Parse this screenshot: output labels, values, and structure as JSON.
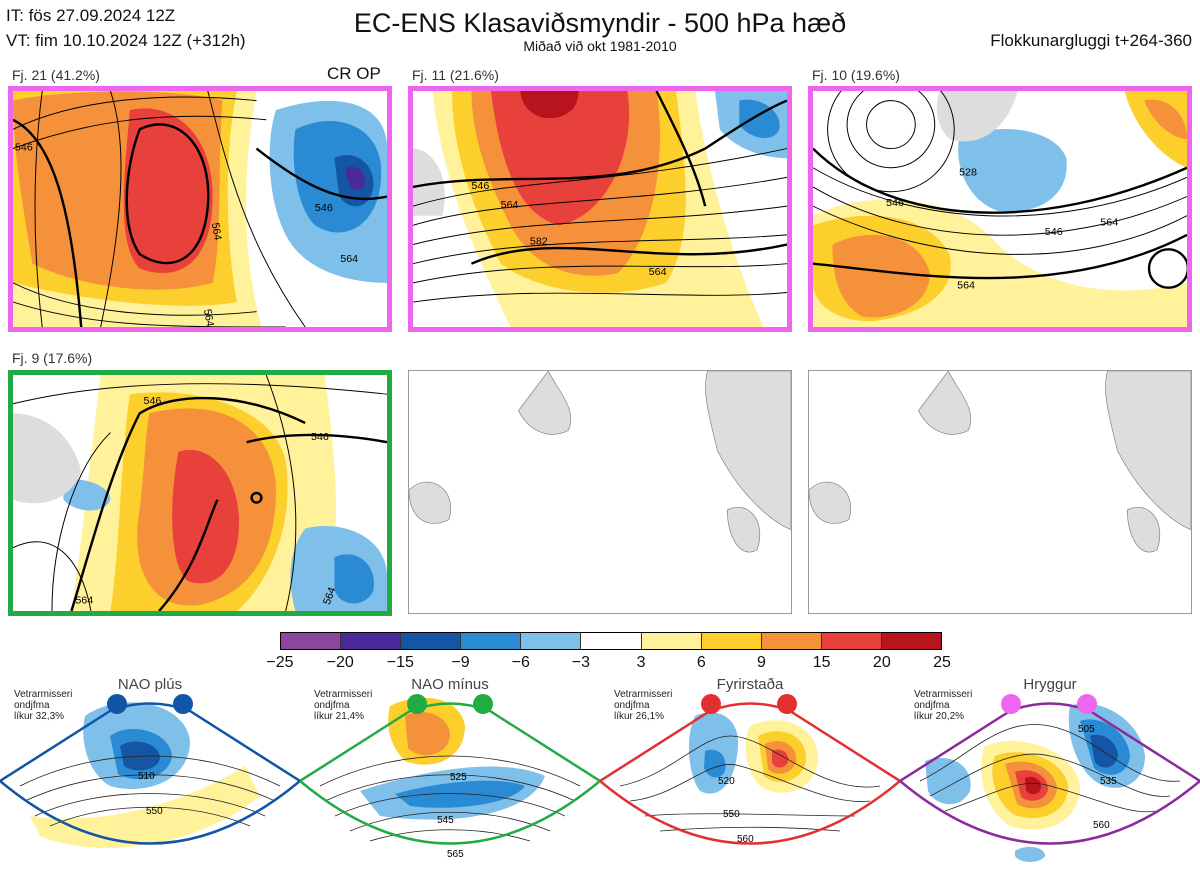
{
  "header": {
    "init_time": "IT: fös 27.09.2024 12Z",
    "valid_time": "VT: fim 10.10.2024 12Z  (+312h)",
    "title": "EC-ENS Klasaviðsmyndir - 500 hPa hæð",
    "subtitle": "Miðað við okt 1981-2010",
    "window": "Flokkunargluggi t+264-360"
  },
  "panels": [
    {
      "label": "Fj. 21 (41.2%)",
      "extra": "CR OP",
      "frame": "pink",
      "contours": [
        "564",
        "546",
        "564",
        "546",
        "564"
      ]
    },
    {
      "label": "Fj. 11 (21.6%)",
      "frame": "pink",
      "contours": [
        "546",
        "564",
        "582",
        "564"
      ]
    },
    {
      "label": "Fj. 10 (19.6%)",
      "frame": "pink",
      "contours": [
        "528",
        "546",
        "546",
        "564",
        "564"
      ]
    },
    {
      "label": "Fj. 9 (17.6%)",
      "frame": "green",
      "contours": [
        "546",
        "546",
        "564",
        "564"
      ]
    }
  ],
  "colorbar": {
    "ticks": [
      "−25",
      "−20",
      "−15",
      "−9",
      "−6",
      "−3",
      "3",
      "6",
      "9",
      "15",
      "20",
      "25"
    ],
    "colors": [
      "#8b46a0",
      "#4a2a9a",
      "#1455a4",
      "#2b8ad4",
      "#7fc0ea",
      "#ffffff",
      "#fff29a",
      "#fccf2c",
      "#f5913a",
      "#e8403a",
      "#b8141e"
    ]
  },
  "regimes": [
    {
      "title": "NAO plús",
      "note": [
        "Vetrarmisseri",
        "ondjfma",
        "líkur 32,3%"
      ],
      "color": "#1155a6",
      "labels": [
        "510",
        "550"
      ]
    },
    {
      "title": "NAO mínus",
      "note": [
        "Vetrarmisseri",
        "ondjfma",
        "líkur 21,4%"
      ],
      "color": "#22aa44",
      "labels": [
        "525",
        "545",
        "565"
      ]
    },
    {
      "title": "Fyrirstaða",
      "note": [
        "Vetrarmisseri",
        "ondjfma",
        "líkur 26,1%"
      ],
      "color": "#e23030",
      "labels": [
        "520",
        "550",
        "560"
      ]
    },
    {
      "title": "Hryggur",
      "note": [
        "Vetrarmisseri",
        "ondjfma",
        "líkur 20,2%"
      ],
      "color": "#ee66ee",
      "labels": [
        "505",
        "535",
        "560"
      ]
    }
  ]
}
